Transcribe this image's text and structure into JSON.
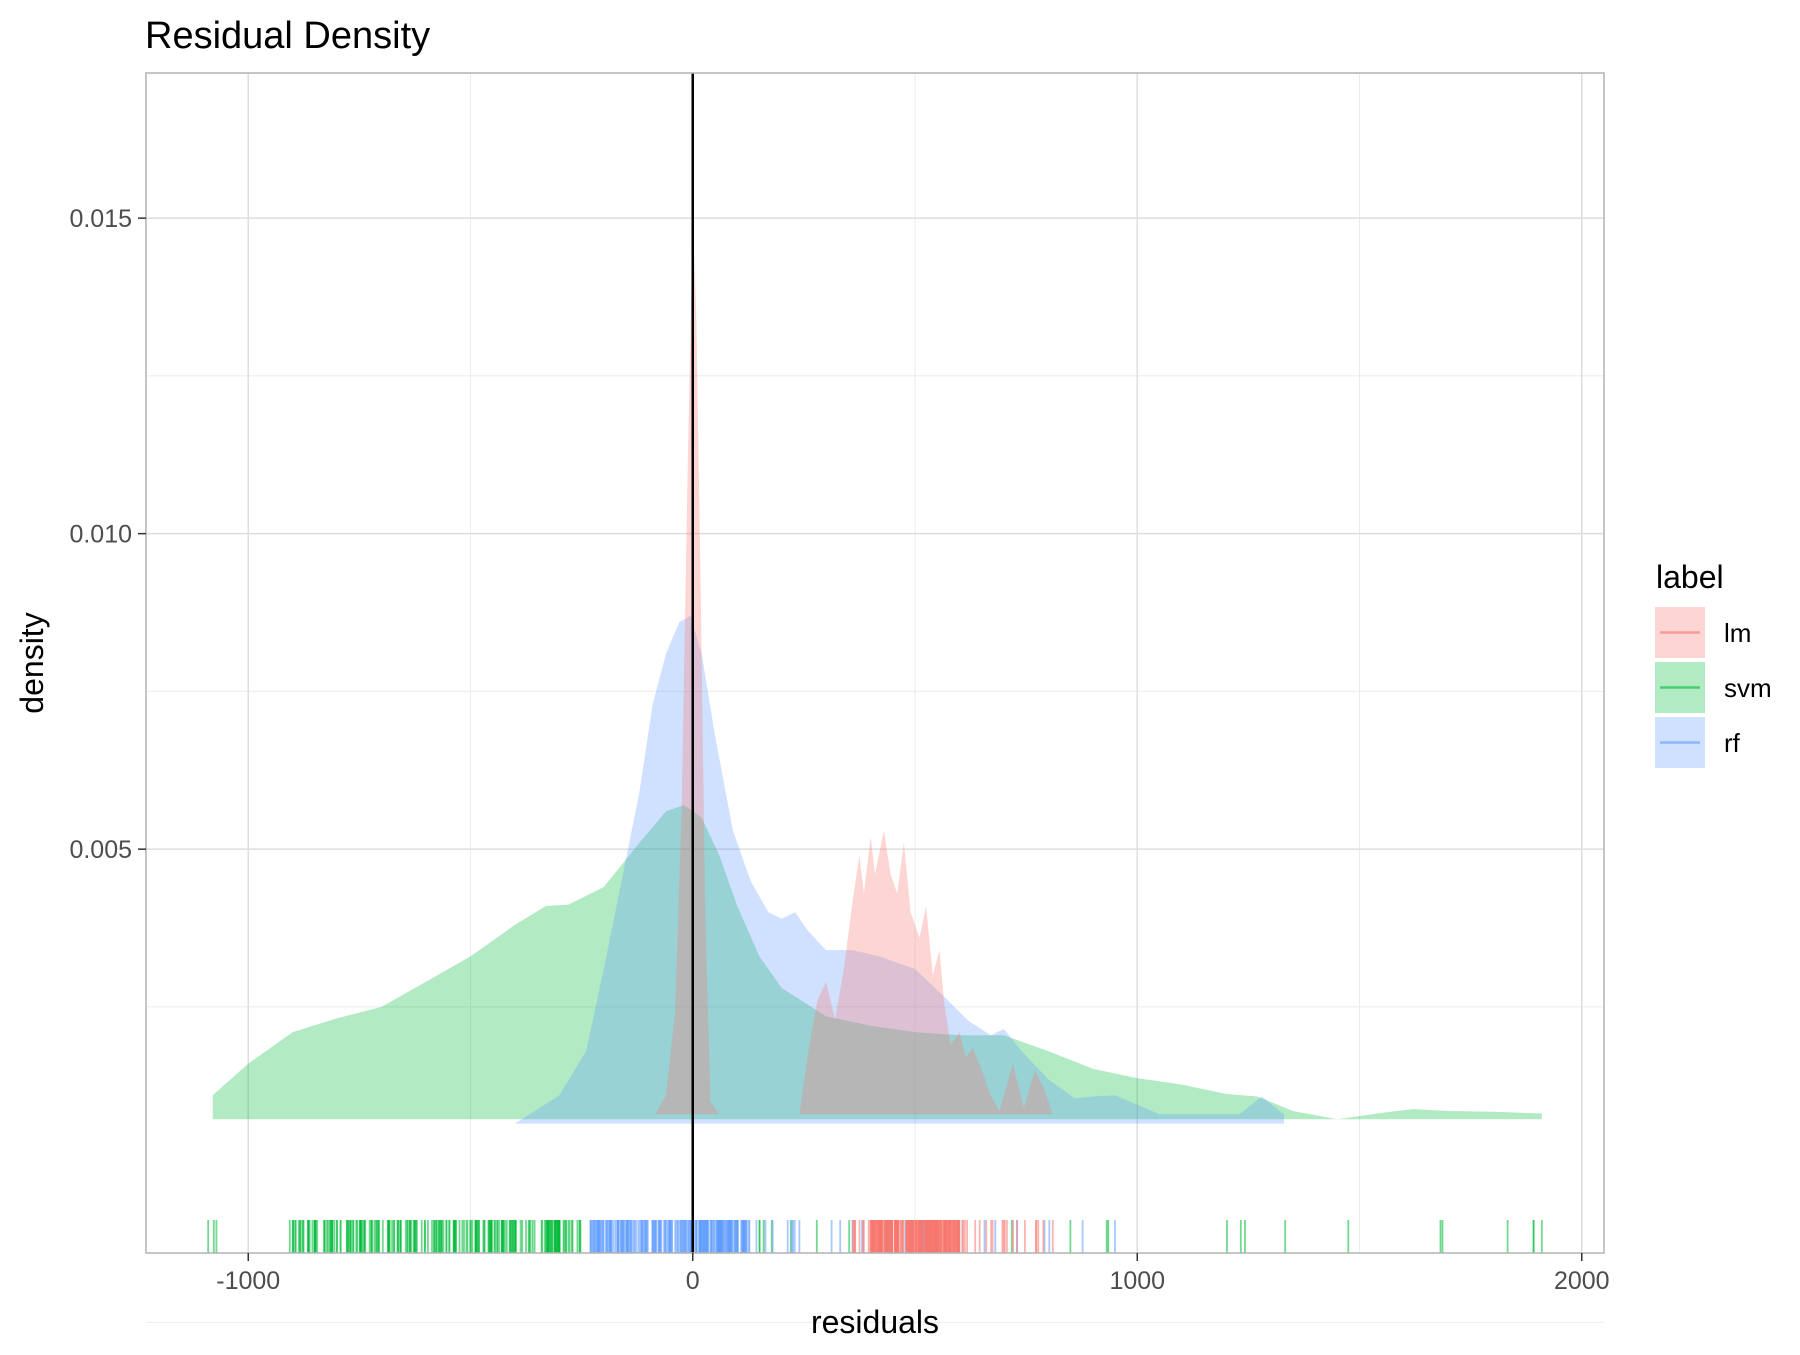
{
  "chart_data": {
    "type": "area",
    "title": "Residual Density",
    "xlabel": "residuals",
    "ylabel": "density",
    "xlim": [
      -1230,
      2050
    ],
    "ylim": [
      -0.0014,
      0.0173
    ],
    "x_ticks": [
      -1000,
      0,
      1000,
      2000
    ],
    "x_tick_labels": [
      "-1000",
      "0",
      "1000",
      "2000"
    ],
    "y_ticks": [
      0.005,
      0.01,
      0.015
    ],
    "y_tick_labels": [
      "0.005",
      "0.010",
      "0.015"
    ],
    "grid": true,
    "vline_x": 0,
    "legend": {
      "title": "label",
      "position": "right",
      "items": [
        "lm",
        "svm",
        "rf"
      ]
    },
    "colors": {
      "lm": "#F8766D",
      "svm": "#00BA38",
      "rf": "#619CFF",
      "vline": "#000000"
    },
    "series": [
      {
        "name": "svm",
        "color": "#00BA38",
        "fill_opacity": 0.3,
        "points": [
          [
            -1080,
            0.0011
          ],
          [
            -1000,
            0.0016
          ],
          [
            -900,
            0.0021
          ],
          [
            -800,
            0.00232
          ],
          [
            -700,
            0.0025
          ],
          [
            -600,
            0.0029
          ],
          [
            -500,
            0.0033
          ],
          [
            -400,
            0.0038
          ],
          [
            -330,
            0.0041
          ],
          [
            -280,
            0.00412
          ],
          [
            -200,
            0.0044
          ],
          [
            -120,
            0.0051
          ],
          [
            -60,
            0.0056
          ],
          [
            -20,
            0.0057
          ],
          [
            20,
            0.0055
          ],
          [
            60,
            0.0049
          ],
          [
            100,
            0.0041
          ],
          [
            150,
            0.0033
          ],
          [
            200,
            0.0028
          ],
          [
            300,
            0.00235
          ],
          [
            400,
            0.0022
          ],
          [
            500,
            0.0021
          ],
          [
            600,
            0.00205
          ],
          [
            700,
            0.00205
          ],
          [
            800,
            0.0018
          ],
          [
            900,
            0.00152
          ],
          [
            1000,
            0.00137
          ],
          [
            1100,
            0.00127
          ],
          [
            1200,
            0.00112
          ],
          [
            1270,
            0.00108
          ],
          [
            1350,
            0.00085
          ],
          [
            1450,
            0.00072
          ],
          [
            1550,
            0.00082
          ],
          [
            1620,
            0.00088
          ],
          [
            1700,
            0.00085
          ],
          [
            1800,
            0.00084
          ],
          [
            1910,
            0.00081
          ]
        ]
      },
      {
        "name": "rf",
        "color": "#619CFF",
        "fill_opacity": 0.3,
        "points": [
          [
            -400,
            0.00065
          ],
          [
            -300,
            0.0011
          ],
          [
            -240,
            0.0018
          ],
          [
            -200,
            0.0031
          ],
          [
            -160,
            0.0045
          ],
          [
            -120,
            0.0059
          ],
          [
            -90,
            0.0073
          ],
          [
            -60,
            0.0081
          ],
          [
            -30,
            0.0086
          ],
          [
            -5,
            0.0087
          ],
          [
            20,
            0.0081
          ],
          [
            50,
            0.0068
          ],
          [
            90,
            0.0053
          ],
          [
            130,
            0.0045
          ],
          [
            170,
            0.004
          ],
          [
            200,
            0.0039
          ],
          [
            230,
            0.004
          ],
          [
            260,
            0.0037
          ],
          [
            300,
            0.0034
          ],
          [
            360,
            0.0034
          ],
          [
            420,
            0.0033
          ],
          [
            500,
            0.0031
          ],
          [
            560,
            0.0027
          ],
          [
            620,
            0.00228
          ],
          [
            670,
            0.00205
          ],
          [
            700,
            0.00215
          ],
          [
            740,
            0.0018
          ],
          [
            800,
            0.00135
          ],
          [
            860,
            0.00105
          ],
          [
            900,
            0.00108
          ],
          [
            950,
            0.0011
          ],
          [
            1000,
            0.00095
          ],
          [
            1050,
            0.0008
          ],
          [
            1230,
            0.0008
          ],
          [
            1280,
            0.00108
          ],
          [
            1330,
            0.0008
          ]
        ]
      },
      {
        "name": "lm",
        "color": "#F8766D",
        "fill_opacity": 0.3,
        "points": [
          [
            -85,
            0.0008
          ],
          [
            -60,
            0.0011
          ],
          [
            -40,
            0.0024
          ],
          [
            -25,
            0.0056
          ],
          [
            -12,
            0.0108
          ],
          [
            0,
            0.015
          ],
          [
            8,
            0.0135
          ],
          [
            18,
            0.009
          ],
          [
            28,
            0.004
          ],
          [
            40,
            0.001
          ],
          [
            60,
            0.0008
          ],
          [
            240,
            0.0008
          ],
          [
            260,
            0.0018
          ],
          [
            280,
            0.0026
          ],
          [
            300,
            0.0029
          ],
          [
            320,
            0.0023
          ],
          [
            340,
            0.0031
          ],
          [
            360,
            0.0042
          ],
          [
            375,
            0.0049
          ],
          [
            385,
            0.0043
          ],
          [
            400,
            0.0052
          ],
          [
            410,
            0.0046
          ],
          [
            430,
            0.0053
          ],
          [
            445,
            0.0046
          ],
          [
            460,
            0.0043
          ],
          [
            475,
            0.0051
          ],
          [
            490,
            0.004
          ],
          [
            510,
            0.0036
          ],
          [
            525,
            0.0041
          ],
          [
            540,
            0.003
          ],
          [
            555,
            0.0034
          ],
          [
            565,
            0.0026
          ],
          [
            580,
            0.0019
          ],
          [
            600,
            0.0021
          ],
          [
            615,
            0.0017
          ],
          [
            630,
            0.00185
          ],
          [
            650,
            0.0015
          ],
          [
            670,
            0.0011
          ],
          [
            690,
            0.00085
          ],
          [
            720,
            0.0016
          ],
          [
            745,
            0.0009
          ],
          [
            770,
            0.0015
          ],
          [
            790,
            0.0012
          ],
          [
            810,
            0.0008
          ]
        ]
      }
    ],
    "rug_series": [
      {
        "name": "svm",
        "color": "#00BA38",
        "range": [
          -1090,
          1910
        ],
        "dense_range": [
          -900,
          -250
        ]
      },
      {
        "name": "rf",
        "color": "#619CFF",
        "range": [
          -230,
          950
        ],
        "dense_range": [
          -230,
          130
        ]
      },
      {
        "name": "lm",
        "color": "#F8766D",
        "range": [
          360,
          810
        ],
        "dense_range": [
          400,
          600
        ]
      }
    ]
  }
}
